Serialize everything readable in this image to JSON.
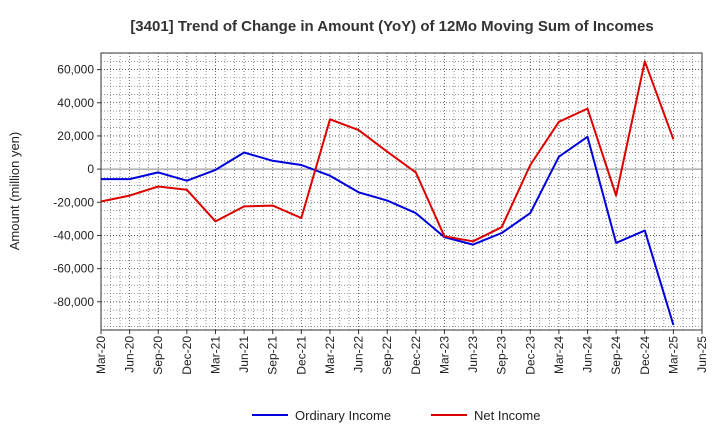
{
  "chart_data": {
    "type": "line",
    "title": "[3401]  Trend of Change in Amount (YoY) of 12Mo Moving Sum of Incomes",
    "xlabel": "",
    "ylabel": "Amount (million yen)",
    "categories": [
      "Mar-20",
      "Jun-20",
      "Sep-20",
      "Dec-20",
      "Mar-21",
      "Jun-21",
      "Sep-21",
      "Dec-21",
      "Mar-22",
      "Jun-22",
      "Sep-22",
      "Dec-22",
      "Mar-23",
      "Jun-23",
      "Sep-23",
      "Dec-23",
      "Mar-24",
      "Jun-24",
      "Sep-24",
      "Dec-24",
      "Mar-25",
      "Jun-25"
    ],
    "yticks": [
      60000,
      40000,
      20000,
      0,
      -20000,
      -40000,
      -60000,
      -80000
    ],
    "ytick_labels": [
      "60,000",
      "40,000",
      "20,000",
      "0",
      "-20,000",
      "-40,000",
      "-60,000",
      "-80,000"
    ],
    "ylim": [
      -97000,
      70000
    ],
    "grid": true,
    "legend_position": "bottom",
    "series": [
      {
        "name": "Ordinary Income",
        "color": "#0000dd",
        "values": [
          -6000,
          -6000,
          -2000,
          -7000,
          -500,
          10000,
          5000,
          2500,
          -4000,
          -14000,
          -19000,
          -26500,
          -41000,
          -45500,
          -38500,
          -26500,
          7500,
          19500,
          -44500,
          -37000,
          -94000,
          null
        ]
      },
      {
        "name": "Net Income",
        "color": "#dd0000",
        "values": [
          -19500,
          -16000,
          -10500,
          -12500,
          -31500,
          -22500,
          -22000,
          -29500,
          30000,
          23500,
          10500,
          -2000,
          -40500,
          -43500,
          -35000,
          2500,
          28500,
          36500,
          -16000,
          65000,
          18000,
          null
        ]
      }
    ]
  }
}
